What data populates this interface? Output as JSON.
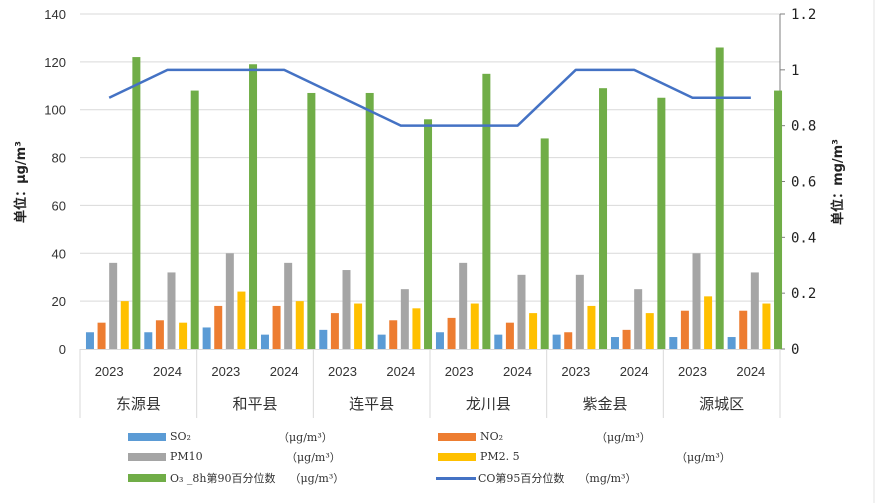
{
  "chart_data": {
    "type": "bar",
    "title": "",
    "xlabel": "",
    "ylabel": "单位：μg/m³",
    "y2label": "单位：mg/m³",
    "ylim": [
      0,
      140
    ],
    "y2lim": [
      0,
      1.2
    ],
    "yticks": [
      0,
      20,
      40,
      60,
      80,
      100,
      120,
      140
    ],
    "y2ticks": [
      "0",
      "0.2",
      "0.4",
      "0.6",
      "0.8",
      "1",
      "1.2"
    ],
    "grid": true,
    "legend_position": "bottom",
    "groups": [
      "东源县",
      "和平县",
      "连平县",
      "龙川县",
      "紫金县",
      "源城区"
    ],
    "years": [
      "2023",
      "2024"
    ],
    "categories": [
      "东源县 2023",
      "东源县 2024",
      "和平县 2023",
      "和平县 2024",
      "连平县 2023",
      "连平县 2024",
      "龙川县 2023",
      "龙川县 2024",
      "紫金县 2023",
      "紫金县 2024",
      "源城区 2023",
      "源城区 2024"
    ],
    "series": [
      {
        "name": "SO₂",
        "unit": "（μg/m³）",
        "type": "bar",
        "axis": "left",
        "color": "#5B9BD5",
        "values": [
          7,
          7,
          9,
          6,
          8,
          6,
          7,
          6,
          6,
          5,
          5,
          5
        ]
      },
      {
        "name": "NO₂",
        "unit": "（μg/m³）",
        "type": "bar",
        "axis": "left",
        "color": "#ED7D31",
        "values": [
          11,
          12,
          18,
          18,
          15,
          12,
          13,
          11,
          7,
          8,
          16,
          16
        ]
      },
      {
        "name": "PM10",
        "unit": "（μg/m³）",
        "type": "bar",
        "axis": "left",
        "color": "#A5A5A5",
        "values": [
          36,
          32,
          40,
          36,
          33,
          25,
          36,
          31,
          31,
          25,
          40,
          32
        ]
      },
      {
        "name": "PM2.5",
        "unit": "（μg/m³）",
        "type": "bar",
        "axis": "left",
        "color": "#FFC000",
        "values": [
          20,
          11,
          24,
          20,
          19,
          17,
          19,
          15,
          18,
          15,
          22,
          19
        ]
      },
      {
        "name": "O₃ _8h第90百分位数",
        "unit": "（μg/m³）",
        "type": "bar",
        "axis": "left",
        "color": "#70AD47",
        "values": [
          122,
          108,
          119,
          107,
          107,
          96,
          115,
          88,
          109,
          105,
          126,
          108
        ]
      },
      {
        "name": "CO第95百分位数",
        "unit": "（mg/m³）",
        "type": "line",
        "axis": "right",
        "color": "#4472C4",
        "values": [
          0.9,
          1.0,
          1.0,
          1.0,
          0.9,
          0.8,
          0.8,
          0.8,
          1.0,
          1.0,
          0.9,
          0.9
        ]
      }
    ]
  },
  "legend": {
    "items": [
      {
        "label": "SO₂",
        "unit": "（μg/m³）"
      },
      {
        "label": "NO₂",
        "unit": "（μg/m³）"
      },
      {
        "label": "PM10",
        "unit": "（μg/m³）"
      },
      {
        "label": "PM2. 5",
        "unit": "（μg/m³）"
      },
      {
        "label": "O₃ _8h第90百分位数",
        "unit": "（μg/m³）"
      },
      {
        "label": "CO第95百分位数",
        "unit": "（mg/m³）"
      }
    ]
  }
}
